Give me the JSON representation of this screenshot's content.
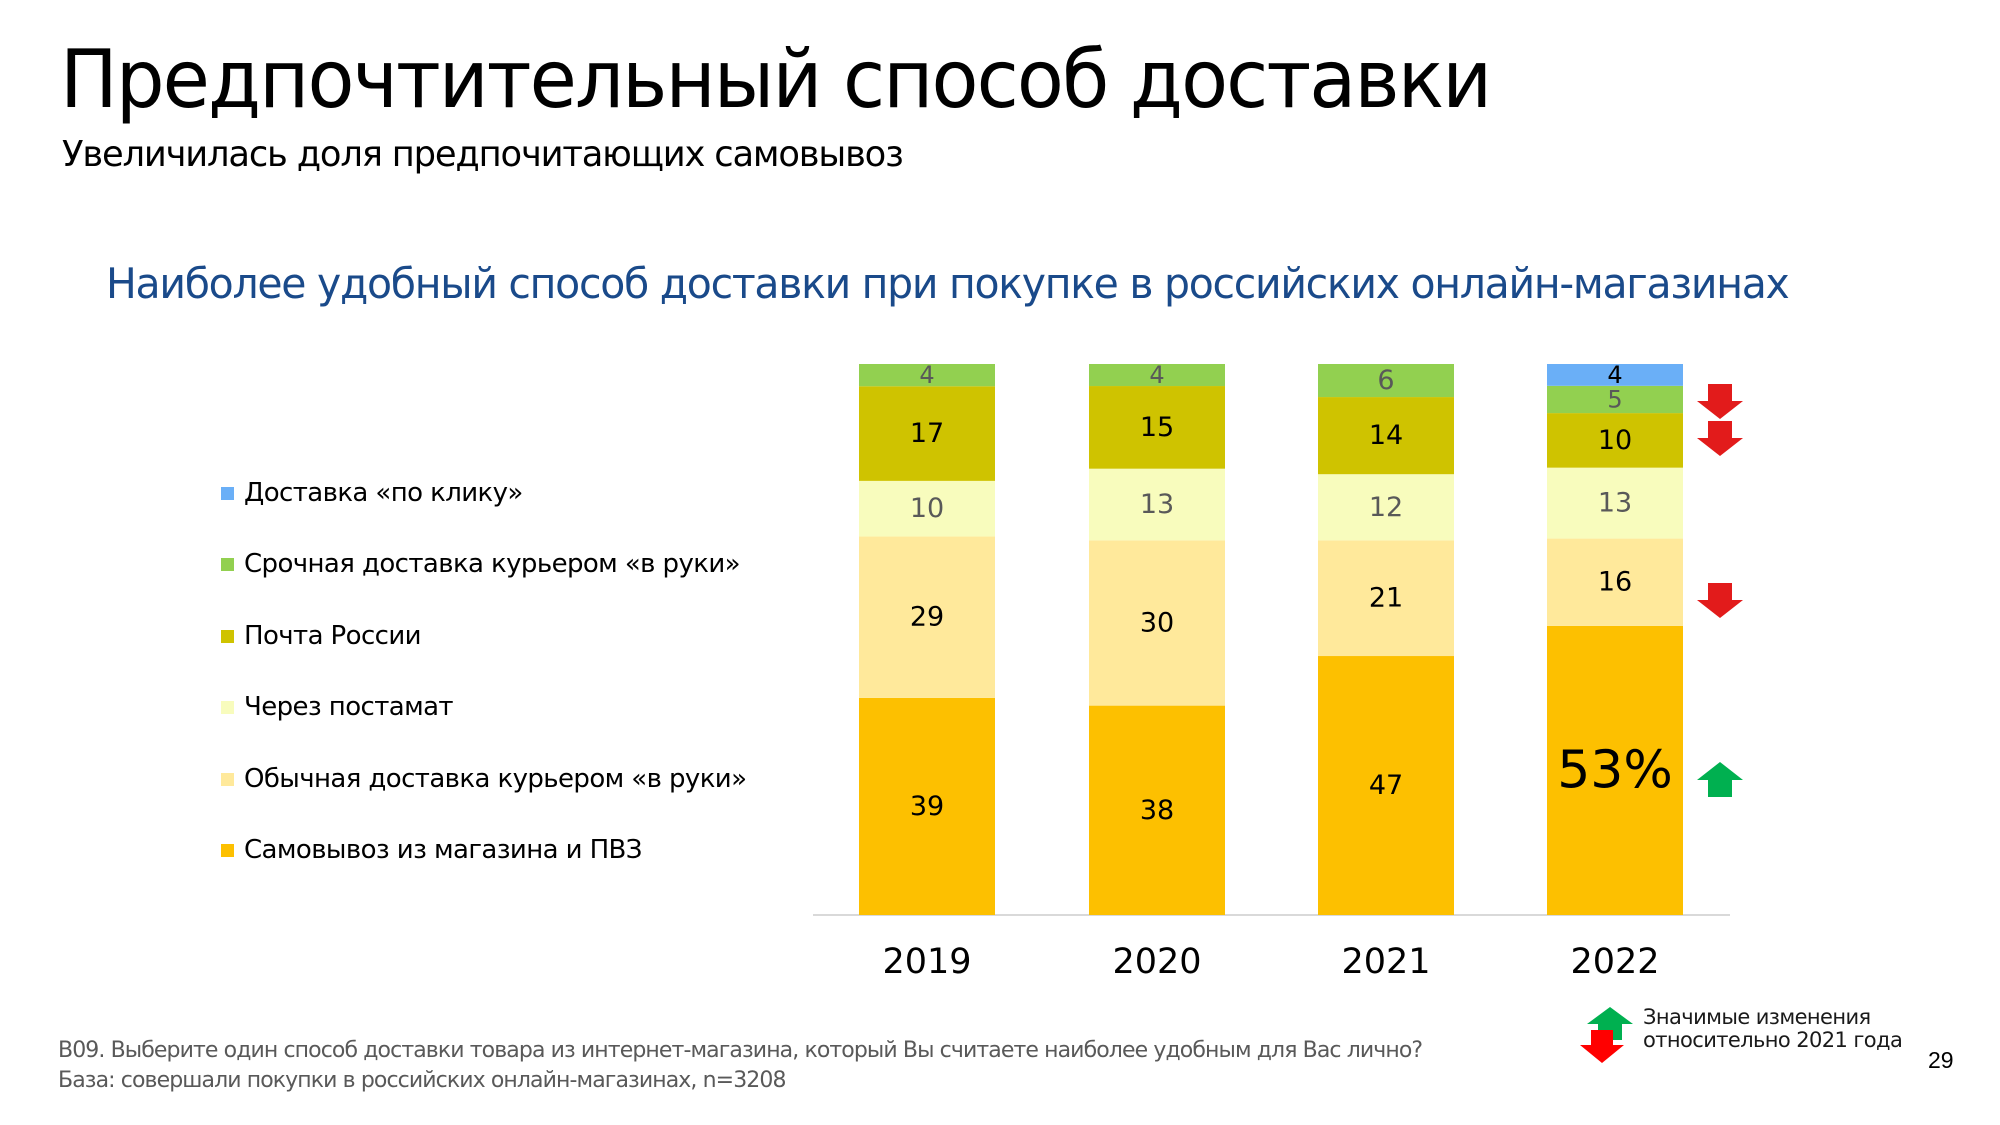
{
  "header": {
    "title": "Предпочтительный способ доставки",
    "subtitle": "Увеличилась доля предпочитающих самовывоз"
  },
  "colors": {
    "chart_title": "#1a4a8a",
    "down_arrow": "#e21b1b",
    "up_arrow": "#00b050"
  },
  "chart_data": {
    "type": "bar",
    "stacked": true,
    "title": "Наиболее удобный способ доставки при покупке в российских онлайн-магазинах",
    "xlabel": "",
    "ylabel": "",
    "ylim": [
      0,
      100
    ],
    "grid": false,
    "legend_position": "left",
    "categories": [
      "2019",
      "2020",
      "2021",
      "2022"
    ],
    "series": [
      {
        "name": "Самовывоз из магазина и ПВЗ",
        "color": "#fdc000",
        "label_color": "#000000",
        "values": [
          39,
          38,
          47,
          53
        ]
      },
      {
        "name": "Обычная доставка курьером «в руки»",
        "color": "#ffe99b",
        "label_color": "#000000",
        "values": [
          29,
          30,
          21,
          16
        ]
      },
      {
        "name": "Через постамат",
        "color": "#f8fcbd",
        "label_color": "#595959",
        "values": [
          10,
          13,
          12,
          13
        ]
      },
      {
        "name": "Почта России",
        "color": "#cfc300",
        "label_color": "#000000",
        "values": [
          17,
          15,
          14,
          10
        ]
      },
      {
        "name": "Срочная доставка курьером «в руки»",
        "color": "#92d050",
        "label_color": "#595959",
        "values": [
          4,
          4,
          6,
          5
        ]
      },
      {
        "name": "Доставка «по клику»",
        "color": "#6aaff7",
        "label_color": "#000000",
        "values": [
          null,
          null,
          null,
          4
        ]
      }
    ],
    "legend_order": [
      5,
      4,
      3,
      2,
      1,
      0
    ],
    "annotations": {
      "highlight_label": {
        "category": "2022",
        "series": "Самовывоз из магазина и ПВЗ",
        "text": "53%"
      },
      "significance_markers": [
        {
          "category": "2022",
          "series": "Срочная доставка курьером «в руки»",
          "direction": "down"
        },
        {
          "category": "2022",
          "series": "Почта России",
          "direction": "down"
        },
        {
          "category": "2022",
          "series": "Обычная доставка курьером «в руки»",
          "direction": "down"
        },
        {
          "category": "2022",
          "series": "Самовывоз из магазина и ПВЗ",
          "direction": "up"
        }
      ]
    }
  },
  "significance_legend": {
    "line1": "Значимые изменения",
    "line2": "относительно 2021 года"
  },
  "footer": {
    "question": "В09. Выберите один способ доставки товара из интернет-магазина, который Вы считаете наиболее удобным для Вас лично?",
    "base": "База: совершали покупки в российских онлайн-магазинах, n=3208"
  },
  "page_number": "29"
}
